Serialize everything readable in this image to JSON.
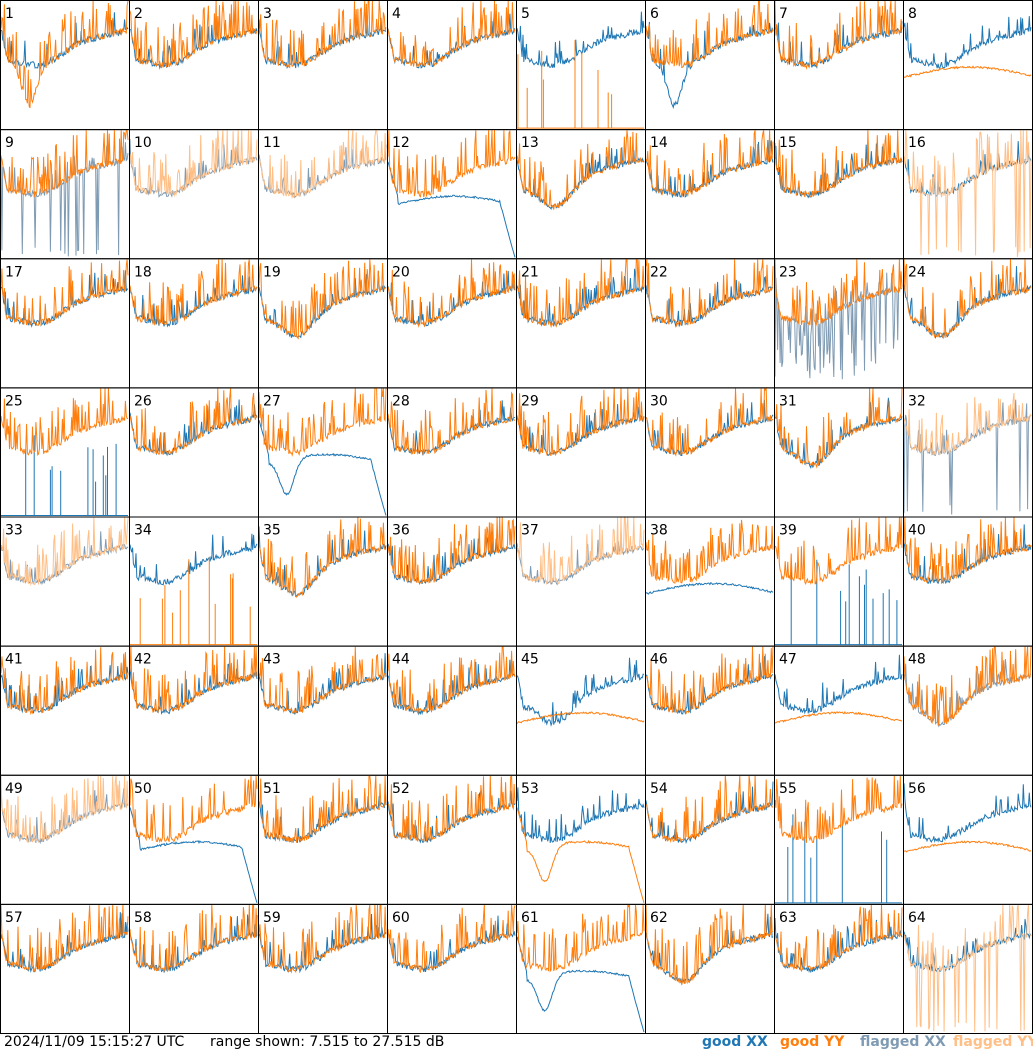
{
  "chart_data": {
    "type": "line",
    "layout": "small-multiples",
    "grid": {
      "rows": 8,
      "cols": 8
    },
    "panel_labels": [
      "1",
      "2",
      "3",
      "4",
      "5",
      "6",
      "7",
      "8",
      "9",
      "10",
      "11",
      "12",
      "13",
      "14",
      "15",
      "16",
      "17",
      "18",
      "19",
      "20",
      "21",
      "22",
      "23",
      "24",
      "25",
      "26",
      "27",
      "28",
      "29",
      "30",
      "31",
      "32",
      "33",
      "34",
      "35",
      "36",
      "37",
      "38",
      "39",
      "40",
      "41",
      "42",
      "43",
      "44",
      "45",
      "46",
      "47",
      "48",
      "49",
      "50",
      "51",
      "52",
      "53",
      "54",
      "55",
      "56",
      "57",
      "58",
      "59",
      "60",
      "61",
      "62",
      "63",
      "64"
    ],
    "range_db": [
      7.515,
      27.515
    ],
    "legend": [
      {
        "label": "good XX",
        "color": "#1f77b4"
      },
      {
        "label": "good YY",
        "color": "#ff7f0e"
      },
      {
        "label": "flagged XX",
        "color": "#7f9bb3"
      },
      {
        "label": "flagged YY",
        "color": "#ffbf86"
      }
    ],
    "panels": {
      "1": {
        "xx": "good",
        "yy": "good",
        "dip": "yy-deep"
      },
      "5": {
        "xx": "good",
        "yy": "spikes"
      },
      "6": {
        "xx": "good",
        "yy": "good",
        "dip": "xx-deep"
      },
      "8": {
        "xx": "good",
        "yy": "smooth"
      },
      "9": {
        "xx": "flagged-spikes",
        "yy": "good"
      },
      "10": {
        "xx": "flagged",
        "yy": "flagged"
      },
      "11": {
        "xx": "flagged",
        "yy": "flagged"
      },
      "12": {
        "xx": "smooth-drop",
        "yy": "good"
      },
      "13": {
        "xx": "good",
        "yy": "good",
        "dip": "mild"
      },
      "16": {
        "xx": "good",
        "yy": "flagged-spikes"
      },
      "19": {
        "xx": "good",
        "yy": "good",
        "dip": "mild"
      },
      "23": {
        "xx": "flagged-noisy",
        "yy": "good"
      },
      "24": {
        "xx": "good",
        "yy": "good",
        "dip": "mild"
      },
      "25": {
        "xx": "spikes",
        "yy": "good"
      },
      "27": {
        "xx": "smooth-drop",
        "yy": "good",
        "dip": "xx-deep"
      },
      "31": {
        "xx": "good",
        "yy": "good",
        "dip": "mild"
      },
      "32": {
        "xx": "flagged-spikes",
        "yy": "flagged"
      },
      "33": {
        "xx": "flagged",
        "yy": "flagged"
      },
      "34": {
        "xx": "good",
        "yy": "spikes"
      },
      "35": {
        "xx": "good",
        "yy": "good",
        "dip": "mild"
      },
      "37": {
        "xx": "flagged",
        "yy": "flagged"
      },
      "38": {
        "xx": "smooth",
        "yy": "good"
      },
      "39": {
        "xx": "spikes",
        "yy": "good"
      },
      "45": {
        "xx": "good",
        "yy": "smooth",
        "dip": "mild"
      },
      "47": {
        "xx": "good",
        "yy": "smooth"
      },
      "48": {
        "xx": "flagged",
        "yy": "good",
        "dip": "mild"
      },
      "49": {
        "xx": "flagged",
        "yy": "flagged"
      },
      "50": {
        "xx": "smooth-drop",
        "yy": "good"
      },
      "53": {
        "xx": "good",
        "yy": "smooth-drop",
        "dip": "yy-deep"
      },
      "55": {
        "xx": "spikes",
        "yy": "good"
      },
      "56": {
        "xx": "good",
        "yy": "smooth"
      },
      "61": {
        "xx": "smooth-drop",
        "yy": "good",
        "dip": "xx-deep"
      },
      "62": {
        "xx": "good",
        "yy": "good",
        "dip": "mild"
      },
      "64": {
        "xx": "good",
        "yy": "flagged-spikes"
      }
    }
  },
  "footer": {
    "timestamp": "2024/11/09 15:15:27 UTC",
    "range_text": "range shown: 7.515 to 27.515 dB",
    "legend_good_xx": "good XX",
    "legend_good_yy": "good YY",
    "legend_flagged_xx": "flagged XX",
    "legend_flagged_yy": "flagged YY"
  }
}
